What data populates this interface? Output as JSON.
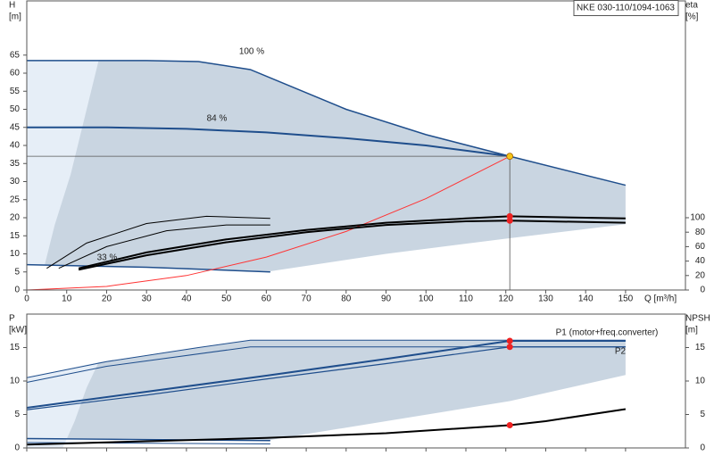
{
  "title": "NKE 030-110/1094-1063",
  "chart_data": [
    {
      "type": "line",
      "xlabel": "Q [m³/h]",
      "ylabel": [
        "H",
        "[m]"
      ],
      "y2label": [
        "eta",
        "[%]"
      ],
      "xlim": [
        0,
        165
      ],
      "xticks": [
        0,
        10,
        20,
        30,
        40,
        50,
        60,
        70,
        80,
        90,
        100,
        110,
        120,
        130,
        140,
        150
      ],
      "show_xtick_labels": true,
      "ylim": [
        0,
        80
      ],
      "yticks": [
        0,
        5,
        10,
        15,
        20,
        25,
        30,
        35,
        40,
        45,
        50,
        55,
        60,
        65
      ],
      "y2lim": [
        0,
        400
      ],
      "y2ticks": [
        0,
        20,
        40,
        60,
        80,
        100
      ],
      "series": [
        {
          "fill": true,
          "color": "#c9d5e1",
          "x": [
            0,
            18,
            30,
            43,
            56,
            80,
            100,
            121,
            150,
            150,
            120,
            90,
            61,
            30,
            5,
            0
          ],
          "values": [
            63.5,
            63.5,
            63.5,
            63.2,
            61,
            50,
            43,
            37,
            29,
            18.2,
            14.2,
            10,
            5.2,
            6.3,
            6.9,
            7
          ]
        },
        {
          "fill": true,
          "color": "#e6eef7",
          "x": [
            0,
            18,
            15,
            11,
            7,
            4.5,
            0
          ],
          "values": [
            63.5,
            63.5,
            50,
            32,
            18,
            7,
            7
          ]
        },
        {
          "name": "100 %",
          "color": "#1f4e8c",
          "width": 1.5,
          "x": [
            0,
            18,
            30,
            43,
            56,
            80,
            100,
            121,
            150
          ],
          "values": [
            63.5,
            63.5,
            63.5,
            63.2,
            61,
            50,
            43,
            37,
            29
          ]
        },
        {
          "name": "84 %",
          "color": "#1f4e8c",
          "width": 2,
          "x": [
            0,
            20,
            40,
            60,
            80,
            100,
            121
          ],
          "values": [
            45,
            45,
            44.6,
            43.6,
            42,
            40,
            37
          ]
        },
        {
          "name": "33 %",
          "color": "#1f4e8c",
          "width": 1.5,
          "x": [
            0,
            30,
            61
          ],
          "values": [
            7,
            6.3,
            5
          ]
        },
        {
          "color": "#ff3333",
          "width": 1,
          "x": [
            0,
            20,
            40,
            60,
            80,
            100,
            121
          ],
          "values": [
            0,
            1,
            4,
            9.1,
            16.2,
            25.3,
            37
          ]
        },
        {
          "axis": "y2",
          "color": "#000000",
          "width": 2,
          "x": [
            13,
            30,
            50,
            70,
            90,
            110,
            121,
            150
          ],
          "values": [
            30,
            52,
            70,
            83,
            93,
            99,
            102,
            99
          ]
        },
        {
          "axis": "y2",
          "color": "#000000",
          "width": 2,
          "x": [
            13,
            30,
            50,
            70,
            90,
            110,
            121,
            150
          ],
          "values": [
            28,
            48,
            66,
            80,
            90,
            95,
            96,
            93
          ]
        },
        {
          "axis": "y2",
          "color": "#000000",
          "width": 1,
          "x": [
            5,
            15,
            30,
            45,
            61
          ],
          "values": [
            30,
            65,
            92,
            102,
            99
          ]
        },
        {
          "axis": "y2",
          "color": "#000000",
          "width": 1,
          "x": [
            8,
            20,
            35,
            50,
            61
          ],
          "values": [
            30,
            60,
            82,
            90,
            90
          ]
        },
        {
          "marker": true,
          "guides": true,
          "color": "#f5c518",
          "x": [
            121
          ],
          "values": [
            37
          ]
        },
        {
          "marker": true,
          "axis": "y2",
          "color": "#ee2222",
          "x": [
            121,
            121
          ],
          "values": [
            102,
            96
          ]
        }
      ]
    },
    {
      "type": "line",
      "ylabel": [
        "P",
        "[kW]"
      ],
      "y2label": [
        "NPSH",
        "[m]"
      ],
      "xlim": [
        0,
        165
      ],
      "xticks": [
        0,
        10,
        20,
        30,
        40,
        50,
        60,
        70,
        80,
        90,
        100,
        110,
        120,
        130,
        140,
        150
      ],
      "show_xtick_labels": false,
      "ylim": [
        0,
        20
      ],
      "yticks": [
        0,
        5,
        10,
        15
      ],
      "y2lim": [
        0,
        20
      ],
      "y2ticks": [
        0,
        5,
        10,
        15
      ],
      "series": [
        {
          "fill": true,
          "color": "#c9d5e1",
          "x": [
            0,
            18,
            43,
            56,
            150,
            150,
            121,
            90,
            61,
            30,
            0
          ],
          "values": [
            10.5,
            12.8,
            15,
            16.1,
            16.1,
            10.9,
            7,
            4,
            1.2,
            1.4,
            1.5
          ]
        },
        {
          "fill": true,
          "color": "#e6eef7",
          "x": [
            0,
            18,
            15,
            12,
            9,
            0
          ],
          "values": [
            10.5,
            12.8,
            9,
            4,
            0,
            0
          ]
        },
        {
          "color": "#1f4e8c",
          "width": 1,
          "x": [
            0,
            20,
            43,
            56,
            150
          ],
          "values": [
            10.5,
            12.9,
            15,
            16.1,
            16.1
          ]
        },
        {
          "color": "#1f4e8c",
          "width": 1,
          "x": [
            0,
            20,
            56,
            150
          ],
          "values": [
            9.8,
            12.2,
            15.1,
            15.1
          ]
        },
        {
          "name": "P1 (motor+freq.converter)",
          "color": "#1f4e8c",
          "width": 2,
          "x": [
            0,
            30,
            60,
            90,
            121,
            150
          ],
          "values": [
            6,
            8.4,
            10.8,
            13.3,
            16,
            16
          ]
        },
        {
          "name": "P2",
          "color": "#1f4e8c",
          "width": 1.2,
          "x": [
            0,
            30,
            60,
            90,
            121,
            150
          ],
          "values": [
            5.7,
            7.9,
            10.3,
            12.6,
            15.1,
            15.1
          ]
        },
        {
          "color": "#1f4e8c",
          "width": 1.5,
          "x": [
            0,
            61
          ],
          "values": [
            1.4,
            1.1
          ]
        },
        {
          "color": "#1f4e8c",
          "width": 1,
          "x": [
            0,
            61
          ],
          "values": [
            0.8,
            0.6
          ]
        },
        {
          "axis": "y2",
          "color": "#000000",
          "width": 2,
          "x": [
            0,
            30,
            60,
            90,
            121,
            130,
            150
          ],
          "values": [
            0.5,
            1,
            1.5,
            2.2,
            3.4,
            4,
            5.8
          ]
        },
        {
          "marker": true,
          "color": "#ee2222",
          "x": [
            121,
            121
          ],
          "values": [
            16,
            15.1
          ]
        },
        {
          "marker": true,
          "axis": "y2",
          "color": "#ee2222",
          "x": [
            121
          ],
          "values": [
            3.4
          ]
        }
      ]
    }
  ]
}
